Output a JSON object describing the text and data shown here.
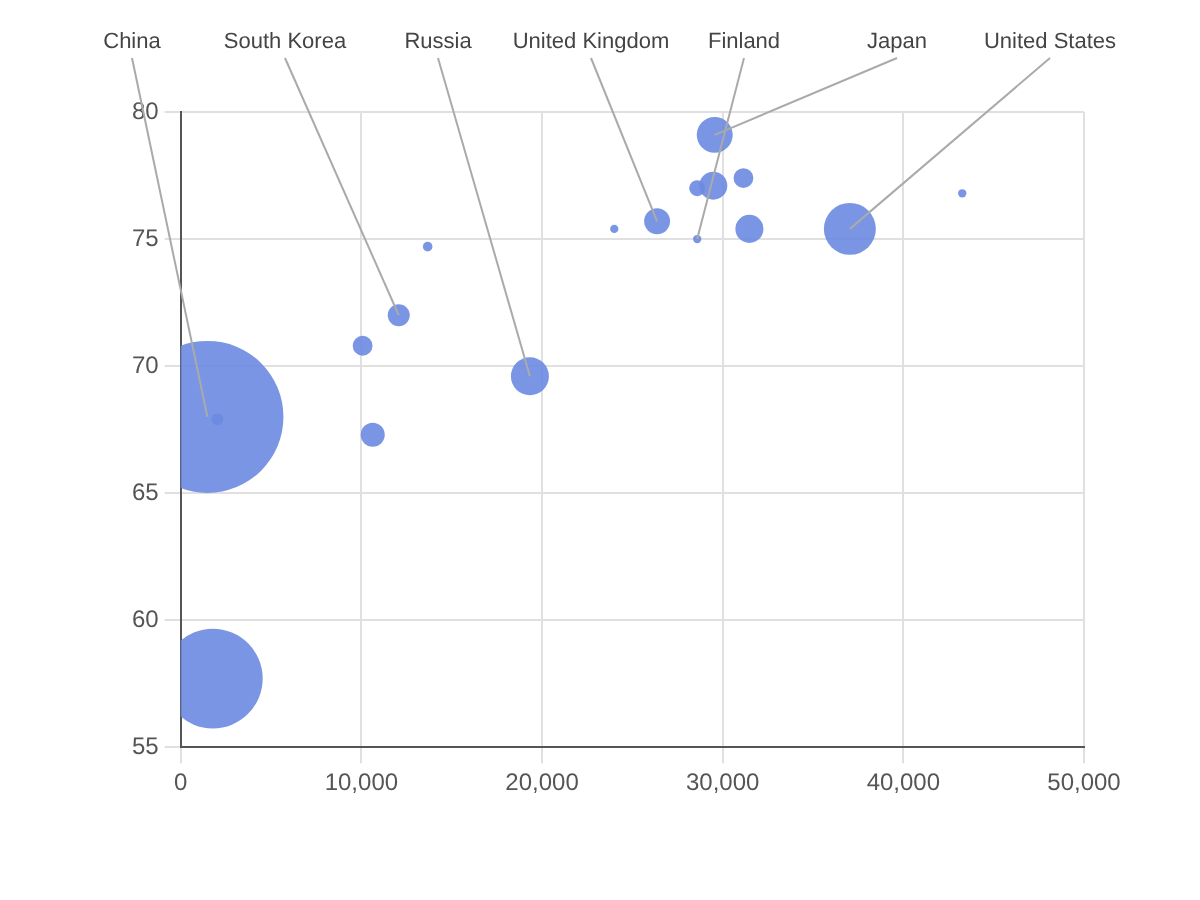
{
  "chart_data": {
    "type": "bubble",
    "color": "#6b89e0",
    "x": [
      1480,
      1780,
      2030,
      10070,
      12070,
      10630,
      19330,
      13670,
      24000,
      26370,
      28590,
      28590,
      29480,
      29560,
      31150,
      31480,
      37040,
      43260
    ],
    "values": [
      68.0,
      57.7,
      67.9,
      70.8,
      72.0,
      67.3,
      69.6,
      74.7,
      75.4,
      75.7,
      75.0,
      77.0,
      77.1,
      79.1,
      77.4,
      75.4,
      75.4,
      76.8
    ],
    "sizes": [
      1,
      0.43,
      0.006,
      0.017,
      0.021,
      0.025,
      0.0625,
      0.004,
      0.003,
      0.029,
      0.003,
      0.011,
      0.034,
      0.056,
      0.017,
      0.034,
      0.117,
      0.003
    ],
    "xlim": [
      0,
      50000
    ],
    "xticks": [
      0,
      {
        "value": 10000,
        "label": "10,000"
      },
      {
        "value": 20000,
        "label": "20,000"
      },
      {
        "value": 30000,
        "label": "30,000"
      },
      {
        "value": 40000,
        "label": "40,000"
      },
      {
        "value": 50000,
        "label": "50,000"
      }
    ],
    "ylim": [
      55,
      80
    ],
    "yticks": [
      55,
      60,
      65,
      70,
      75,
      80
    ],
    "grid": true,
    "legend": false,
    "annotations": [
      {
        "text": "China",
        "x": 1480,
        "y": 68.0
      },
      {
        "text": "South Korea",
        "x": 12070,
        "y": 72.0
      },
      {
        "text": "Russia",
        "x": 19330,
        "y": 69.6
      },
      {
        "text": "United Kingdom",
        "x": 26370,
        "y": 75.7
      },
      {
        "text": "Finland",
        "x": 28590,
        "y": 75.0
      },
      {
        "text": "Japan",
        "x": 29560,
        "y": 79.1
      },
      {
        "text": "United States",
        "x": 37040,
        "y": 75.4
      }
    ]
  }
}
